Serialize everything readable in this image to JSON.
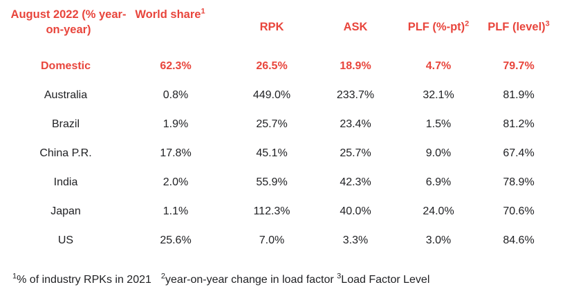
{
  "headers": [
    {
      "text": "August 2022 (% year-on-year)",
      "sup": ""
    },
    {
      "text": "World share",
      "sup": "1"
    },
    {
      "text": "RPK",
      "sup": ""
    },
    {
      "text": "ASK",
      "sup": ""
    },
    {
      "text": "PLF (%-pt)",
      "sup": "2"
    },
    {
      "text": "PLF (level)",
      "sup": "3"
    }
  ],
  "rows": [
    {
      "label": "Domestic",
      "world_share": "62.3%",
      "rpk": "26.5%",
      "ask": "18.9%",
      "plf_pt": "4.7%",
      "plf_level": "79.7%"
    },
    {
      "label": "Australia",
      "world_share": "0.8%",
      "rpk": "449.0%",
      "ask": "233.7%",
      "plf_pt": "32.1%",
      "plf_level": "81.9%"
    },
    {
      "label": "Brazil",
      "world_share": "1.9%",
      "rpk": "25.7%",
      "ask": "23.4%",
      "plf_pt": "1.5%",
      "plf_level": "81.2%"
    },
    {
      "label": "China P.R.",
      "world_share": "17.8%",
      "rpk": "45.1%",
      "ask": "25.7%",
      "plf_pt": "9.0%",
      "plf_level": "67.4%"
    },
    {
      "label": "India",
      "world_share": "2.0%",
      "rpk": "55.9%",
      "ask": "42.3%",
      "plf_pt": "6.9%",
      "plf_level": "78.9%"
    },
    {
      "label": "Japan",
      "world_share": "1.1%",
      "rpk": "112.3%",
      "ask": "40.0%",
      "plf_pt": "24.0%",
      "plf_level": "70.6%"
    },
    {
      "label": "US",
      "world_share": "25.6%",
      "rpk": "7.0%",
      "ask": "3.3%",
      "plf_pt": "3.0%",
      "plf_level": "84.6%"
    }
  ],
  "footnotes": [
    {
      "sup": "1",
      "text": "% of industry RPKs in 2021"
    },
    {
      "sup": "2",
      "text": "year-on-year change in load factor"
    },
    {
      "sup": "3",
      "text": "Load Factor Level"
    }
  ],
  "colors": {
    "accent": "#e8453c",
    "text": "#202124",
    "background": "#ffffff"
  }
}
